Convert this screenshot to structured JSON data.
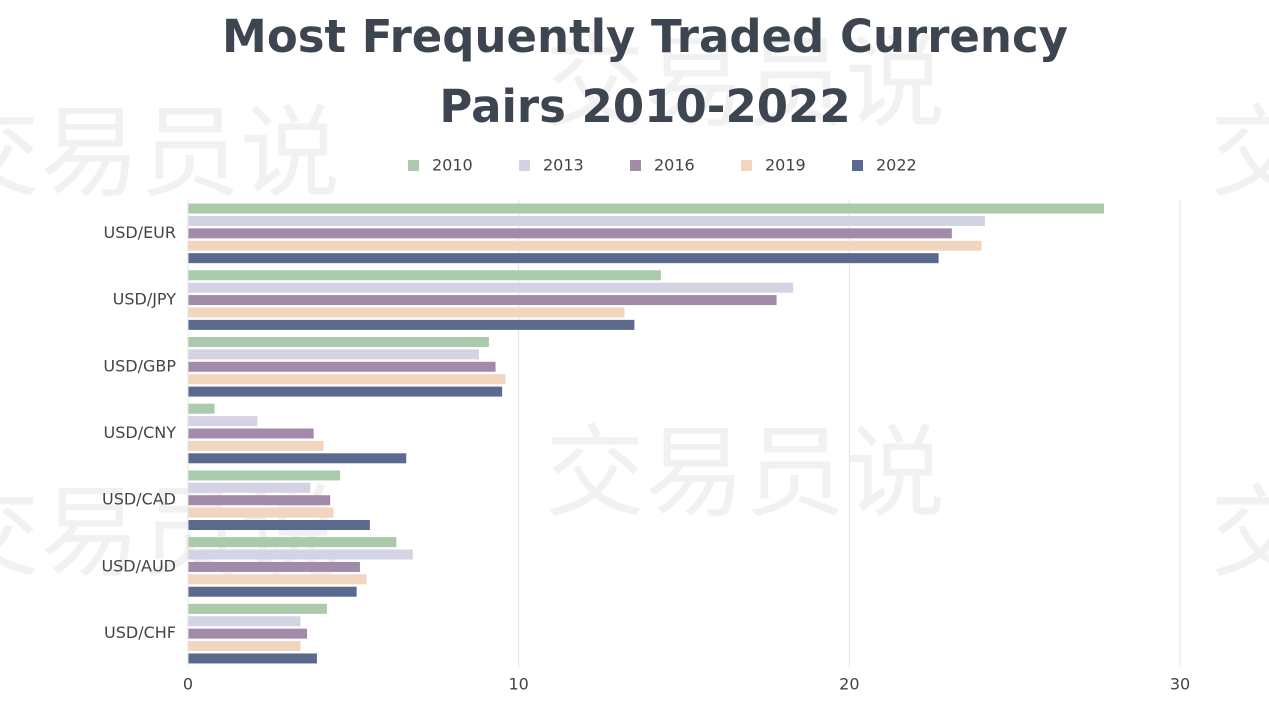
{
  "chart_data": {
    "type": "hbar",
    "title": "Most Frequently Traded Currency Pairs 2010-2022",
    "watermark": "交易员说",
    "categories": [
      "USD/EUR",
      "USD/JPY",
      "USD/GBP",
      "USD/CNY",
      "USD/CAD",
      "USD/AUD",
      "USD/CHF"
    ],
    "series": [
      {
        "name": "2010",
        "color": "#abc9ab",
        "values": [
          27.7,
          14.3,
          9.1,
          0.8,
          4.6,
          6.3,
          4.2
        ]
      },
      {
        "name": "2013",
        "color": "#d3d3e3",
        "values": [
          24.1,
          18.3,
          8.8,
          2.1,
          3.7,
          6.8,
          3.4
        ]
      },
      {
        "name": "2016",
        "color": "#a28ba8",
        "values": [
          23.1,
          17.8,
          9.3,
          3.8,
          4.3,
          5.2,
          3.6
        ]
      },
      {
        "name": "2019",
        "color": "#f1d5bf",
        "values": [
          24.0,
          13.2,
          9.6,
          4.1,
          4.4,
          5.4,
          3.4
        ]
      },
      {
        "name": "2022",
        "color": "#5a6a8e",
        "values": [
          22.7,
          13.5,
          9.5,
          6.6,
          5.5,
          5.1,
          3.9
        ]
      }
    ],
    "xlim": [
      0,
      30
    ],
    "xticks": [
      0,
      10,
      20,
      30
    ],
    "grid": true
  }
}
